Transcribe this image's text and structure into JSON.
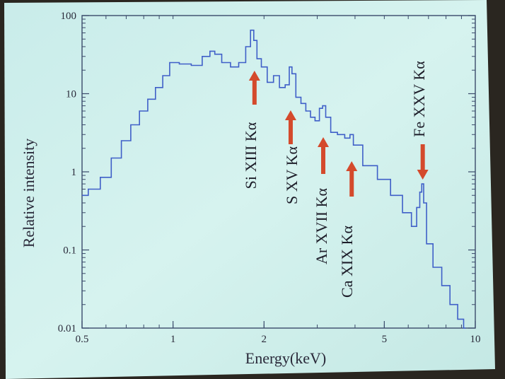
{
  "chart_data": {
    "type": "line",
    "title": "",
    "xlabel": "Energy(keV)",
    "ylabel": "Relative intensity",
    "x_scale": "log",
    "y_scale": "log",
    "xlim": [
      0.5,
      10
    ],
    "ylim": [
      0.01,
      100
    ],
    "x_ticks": [
      {
        "value": 0.5,
        "label": "0.5"
      },
      {
        "value": 1,
        "label": "1"
      },
      {
        "value": 2,
        "label": "2"
      },
      {
        "value": 5,
        "label": "5"
      },
      {
        "value": 10,
        "label": "10"
      }
    ],
    "y_ticks": [
      {
        "value": 0.01,
        "label": "0.01"
      },
      {
        "value": 0.1,
        "label": "0.1"
      },
      {
        "value": 1,
        "label": "1"
      },
      {
        "value": 10,
        "label": "10"
      },
      {
        "value": 100,
        "label": "100"
      }
    ],
    "grid": false,
    "series": [
      {
        "name": "",
        "color": "#3f5fc8",
        "points": [
          [
            0.5,
            0.5
          ],
          [
            0.55,
            0.6
          ],
          [
            0.6,
            0.85
          ],
          [
            0.65,
            1.5
          ],
          [
            0.7,
            2.5
          ],
          [
            0.75,
            4
          ],
          [
            0.8,
            6
          ],
          [
            0.85,
            8.5
          ],
          [
            0.9,
            12
          ],
          [
            0.95,
            17
          ],
          [
            1.0,
            25
          ],
          [
            1.1,
            24
          ],
          [
            1.2,
            23
          ],
          [
            1.3,
            30
          ],
          [
            1.35,
            35
          ],
          [
            1.4,
            32
          ],
          [
            1.5,
            25
          ],
          [
            1.6,
            22
          ],
          [
            1.7,
            25
          ],
          [
            1.78,
            40
          ],
          [
            1.83,
            65
          ],
          [
            1.87,
            48
          ],
          [
            1.92,
            28
          ],
          [
            2.0,
            22
          ],
          [
            2.1,
            14
          ],
          [
            2.2,
            17
          ],
          [
            2.3,
            12
          ],
          [
            2.4,
            13
          ],
          [
            2.45,
            22
          ],
          [
            2.5,
            18
          ],
          [
            2.6,
            9
          ],
          [
            2.7,
            7.5
          ],
          [
            2.8,
            6
          ],
          [
            2.9,
            5
          ],
          [
            3.0,
            4.5
          ],
          [
            3.1,
            6.5
          ],
          [
            3.15,
            7
          ],
          [
            3.25,
            5
          ],
          [
            3.4,
            3.2
          ],
          [
            3.6,
            3
          ],
          [
            3.8,
            2.7
          ],
          [
            3.9,
            3
          ],
          [
            4.0,
            2.2
          ],
          [
            4.5,
            1.2
          ],
          [
            5.0,
            0.8
          ],
          [
            5.5,
            0.5
          ],
          [
            6.0,
            0.3
          ],
          [
            6.3,
            0.2
          ],
          [
            6.5,
            0.35
          ],
          [
            6.6,
            0.55
          ],
          [
            6.7,
            0.7
          ],
          [
            6.8,
            0.4
          ],
          [
            7.0,
            0.12
          ],
          [
            7.5,
            0.06
          ],
          [
            8.0,
            0.035
          ],
          [
            8.5,
            0.02
          ],
          [
            9.0,
            0.013
          ],
          [
            9.3,
            0.01
          ]
        ]
      }
    ],
    "annotations": [
      {
        "label": "Si XIII Kα",
        "x": 1.86,
        "direction": "up"
      },
      {
        "label": "S XV Kα",
        "x": 2.45,
        "direction": "up"
      },
      {
        "label": "Ar XVII Kα",
        "x": 3.14,
        "direction": "up"
      },
      {
        "label": "Ca XIX Kα",
        "x": 3.9,
        "direction": "up"
      },
      {
        "label": "Fe XXV Kα",
        "x": 6.7,
        "direction": "down"
      }
    ],
    "arrow_color": "#d44a2c"
  }
}
